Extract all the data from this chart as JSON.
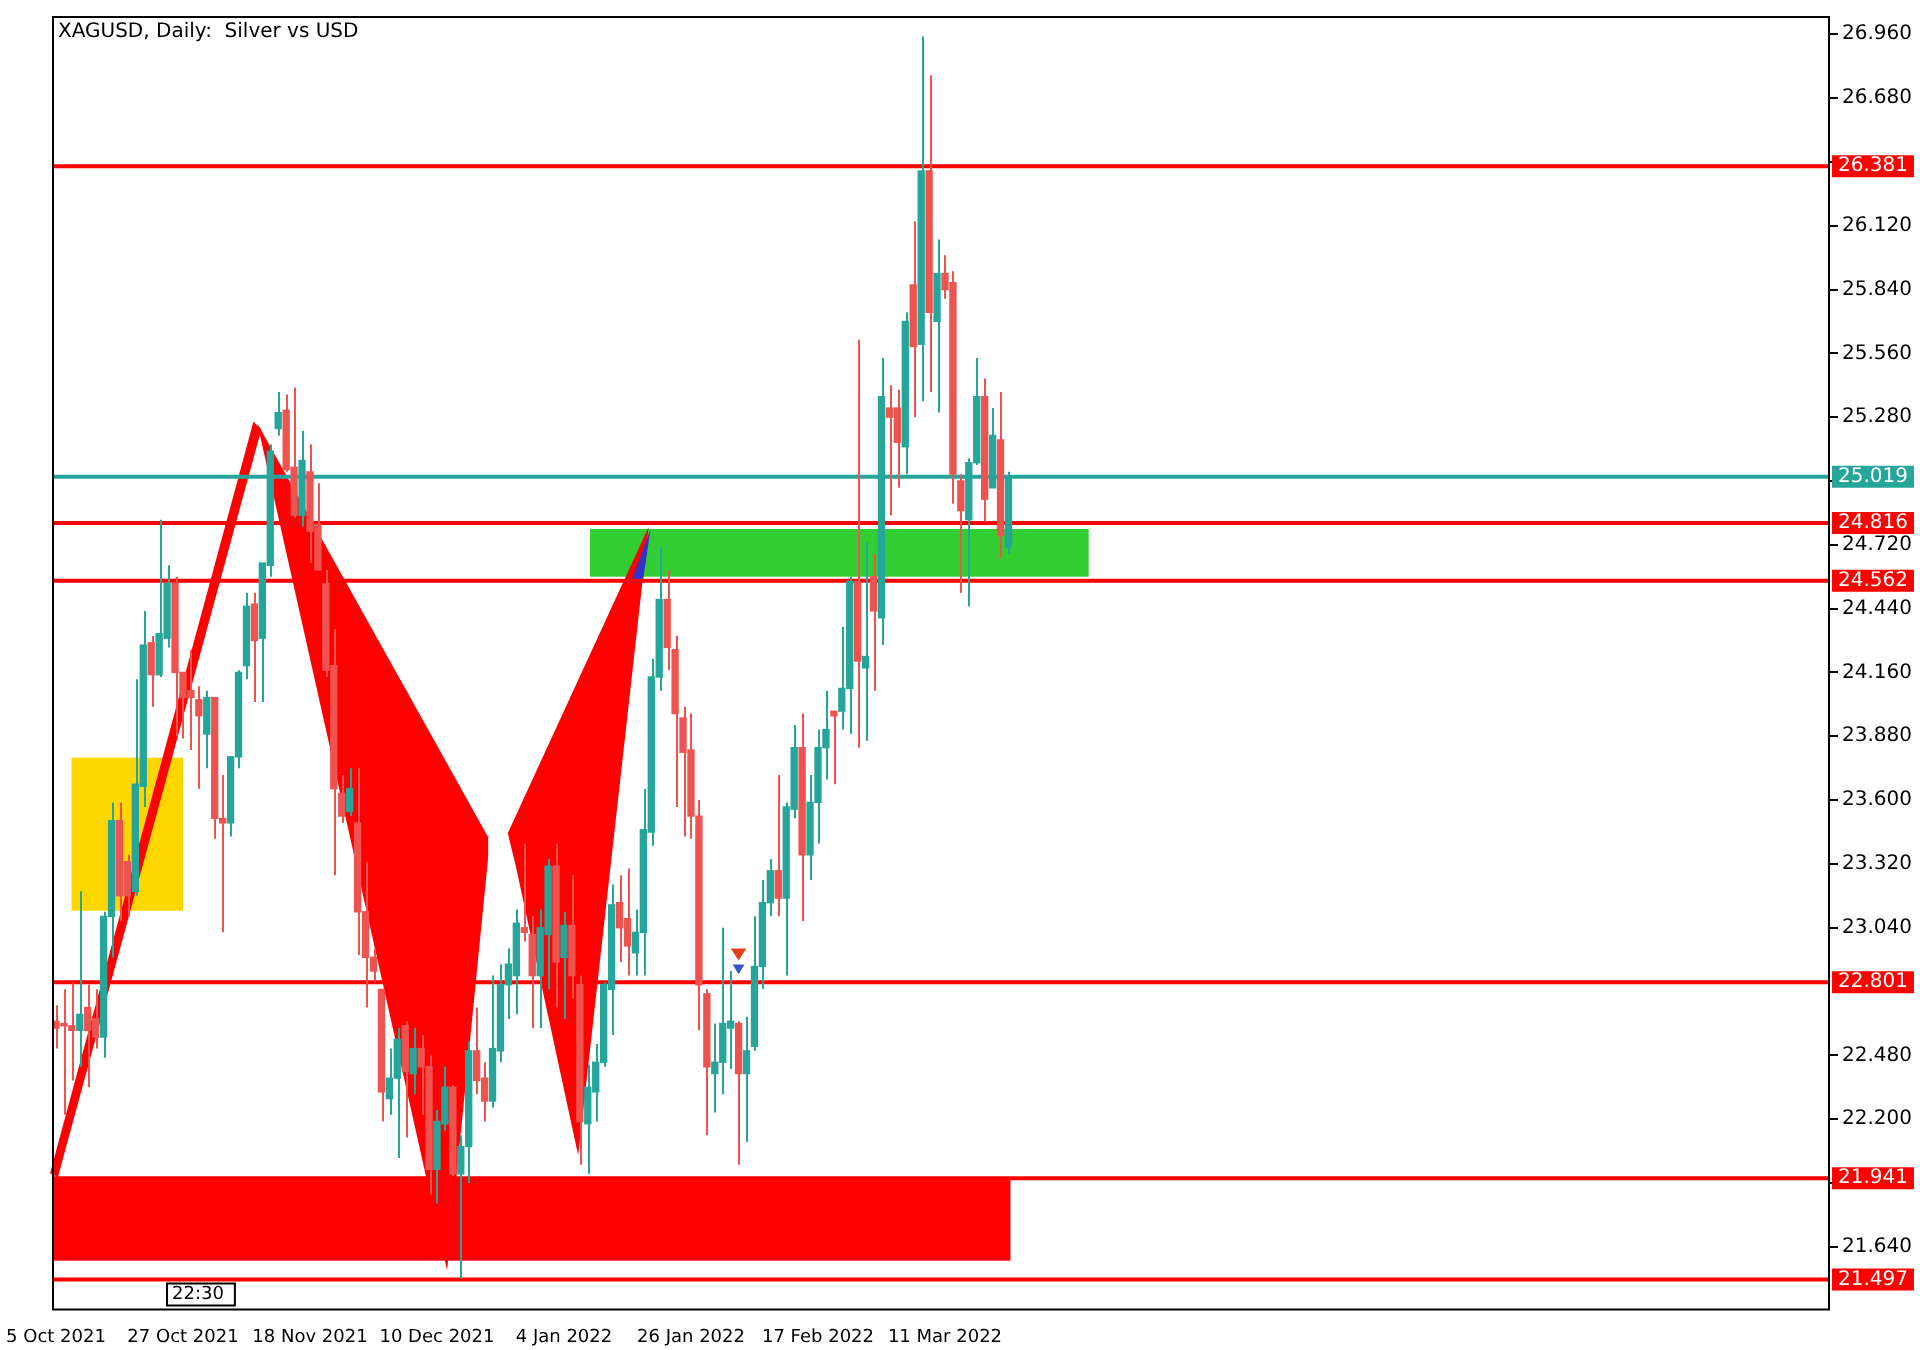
{
  "chart_data": {
    "type": "candlestick",
    "title": "XAGUSD, Daily:  Silver vs USD",
    "annotations": [
      "22:30"
    ],
    "colors": [
      "#ef5350",
      "#ef5350",
      "#ef5350",
      "#26a69a",
      "#ef5350",
      "#ef5350",
      "#26a69a",
      "#26a69a",
      "#ef5350",
      "#ef5350",
      "#26a69a",
      "#26a69a",
      "#ef5350",
      "#26a69a",
      "#26a69a",
      "#ef5350",
      "#ef5350",
      "#ef5350",
      "#ef5350",
      "#26a69a",
      "#ef5350",
      "#ef5350",
      "#26a69a",
      "#26a69a",
      "#26a69a",
      "#ef5350",
      "#26a69a",
      "#26a69a",
      "#26a69a",
      "#ef5350",
      "#ef5350",
      "#26a69a",
      "#ef5350",
      "#ef5350",
      "#ef5350",
      "#ef5350",
      "#ef5350",
      "#26a69a",
      "#ef5350",
      "#ef5350",
      "#ef5350",
      "#ef5350",
      "#26a69a",
      "#26a69a",
      "#ef5350",
      "#26a69a",
      "#ef5350",
      "#ef5350",
      "#26a69a",
      "#26a69a",
      "#ef5350",
      "#26a69a",
      "#26a69a",
      "#ef5350",
      "#ef5350",
      "#26a69a",
      "#26a69a",
      "#26a69a",
      "#26a69a",
      "#ef5350",
      "#ef5350",
      "#26a69a",
      "#26a69a",
      "#ef5350",
      "#26a69a",
      "#ef5350",
      "#ef5350",
      "#26a69a",
      "#26a69a",
      "#26a69a",
      "#26a69a",
      "#ef5350",
      "#ef5350",
      "#26a69a",
      "#26a69a",
      "#26a69a",
      "#26a69a",
      "#ef5350",
      "#ef5350",
      "#ef5350",
      "#ef5350",
      "#ef5350",
      "#ef5350",
      "#26a69a",
      "#26a69a",
      "#26a69a",
      "#ef5350",
      "#26a69a",
      "#26a69a",
      "#26a69a",
      "#26a69a",
      "#ef5350",
      "#26a69a",
      "#26a69a",
      "#ef5350",
      "#26a69a",
      "#26a69a",
      "#26a69a",
      "#ef5350",
      "#26a69a",
      "#26a69a",
      "#ef5350",
      "#26a69a",
      "#ef5350",
      "#26a69a",
      "#ef5350",
      "#ef5350",
      "#26a69a",
      "#ef5350",
      "#26a69a",
      "#ef5350",
      "#26a69a",
      "#ef5350",
      "#ef5350",
      "#ef5350",
      "#26a69a",
      "#26a69a",
      "#ef5350",
      "#26a69a",
      "#ef5350",
      "#26a69a",
      null,
      null,
      null,
      null,
      null,
      null,
      null,
      null,
      null,
      null,
      null,
      null,
      null,
      null,
      null,
      null,
      null,
      null,
      null,
      null,
      null,
      null,
      null,
      null,
      null,
      null,
      null,
      null,
      null,
      null,
      null,
      null,
      null,
      null,
      null,
      null,
      null,
      null,
      null,
      null,
      null,
      null,
      null,
      null,
      null,
      null,
      null,
      null,
      null,
      null,
      null,
      null,
      null,
      null,
      null,
      null,
      null,
      null,
      null,
      null,
      null,
      null,
      null,
      null,
      null,
      null,
      null,
      null,
      null,
      null,
      null,
      null,
      null,
      null,
      null,
      null,
      null,
      null,
      null,
      null,
      null,
      null,
      null,
      null,
      null,
      null,
      null,
      null,
      null,
      null,
      null,
      null,
      null,
      null,
      null,
      null,
      null,
      null,
      null,
      null,
      null,
      null,
      null
    ],
    "ylim": [
      21.37,
      27.04
    ],
    "yticks": [
      {
        "value": 26.96,
        "label": "26.960"
      },
      {
        "value": 26.68,
        "label": "26.680"
      },
      {
        "value": 26.4,
        "label": null
      },
      {
        "value": 26.12,
        "label": "26.120"
      },
      {
        "value": 25.84,
        "label": "25.840"
      },
      {
        "value": 25.56,
        "label": "25.560"
      },
      {
        "value": 25.28,
        "label": "25.280"
      },
      {
        "value": 25.0,
        "label": null
      },
      {
        "value": 24.72,
        "label": "24.720"
      },
      {
        "value": 24.44,
        "label": "24.440"
      },
      {
        "value": 24.16,
        "label": "24.160"
      },
      {
        "value": 23.88,
        "label": "23.880"
      },
      {
        "value": 23.6,
        "label": "23.600"
      },
      {
        "value": 23.32,
        "label": "23.320"
      },
      {
        "value": 23.04,
        "label": "23.040"
      },
      {
        "value": 22.48,
        "label": "22.480"
      },
      {
        "value": 22.2,
        "label": "22.200"
      },
      {
        "value": 21.92,
        "label": null
      },
      {
        "value": 21.64,
        "label": "21.640"
      }
    ],
    "ref_lines": [
      {
        "axis": "y",
        "value": 26.381,
        "label": "26.381",
        "color": "#ff0000"
      },
      {
        "axis": "y",
        "value": 25.019,
        "label": "25.019",
        "color": "#26a69a"
      },
      {
        "axis": "y",
        "value": 24.816,
        "label": "24.816",
        "color": "#ff0000"
      },
      {
        "axis": "y",
        "value": 24.562,
        "label": "24.562",
        "color": "#ff0000"
      },
      {
        "axis": "y",
        "value": 22.801,
        "label": "22.801",
        "color": "#ff0000"
      },
      {
        "axis": "y",
        "value": 21.941,
        "label": "21.941",
        "color": "#ff0000"
      },
      {
        "axis": "y",
        "value": 21.497,
        "label": "21.497",
        "color": "#ff0000"
      }
    ],
    "categories": [
      "5 Oct 2021",
      null,
      null,
      null,
      null,
      null,
      null,
      null,
      null,
      null,
      null,
      null,
      null,
      null,
      null,
      null,
      "27 Oct 2021",
      null,
      null,
      null,
      null,
      null,
      null,
      null,
      null,
      null,
      null,
      null,
      null,
      null,
      null,
      null,
      "18 Nov 2021",
      null,
      null,
      null,
      null,
      null,
      null,
      null,
      null,
      null,
      null,
      null,
      null,
      null,
      null,
      null,
      "10 Dec 2021",
      null,
      null,
      null,
      null,
      null,
      null,
      null,
      null,
      null,
      null,
      null,
      null,
      null,
      null,
      null,
      "4 Jan 2022",
      null,
      null,
      null,
      null,
      null,
      null,
      null,
      null,
      null,
      null,
      null,
      null,
      null,
      null,
      null,
      "26 Jan 2022",
      null,
      null,
      null,
      null,
      null,
      null,
      null,
      null,
      null,
      null,
      null,
      null,
      null,
      null,
      null,
      "17 Feb 2022",
      null,
      null,
      null,
      null,
      null,
      null,
      null,
      null,
      null,
      null,
      null,
      null,
      null,
      null,
      null,
      "11 Mar 2022",
      null,
      null,
      null,
      null,
      null,
      null,
      null,
      null,
      null,
      null,
      null,
      null,
      null,
      null,
      null,
      null,
      null,
      null,
      null,
      null,
      null,
      null,
      null,
      null,
      null,
      null,
      null,
      null,
      null,
      null,
      null,
      null,
      null,
      null,
      null,
      null,
      null,
      null,
      null,
      null,
      null,
      null,
      null,
      null,
      null,
      null,
      null,
      null,
      null,
      null,
      null,
      null,
      null,
      null,
      null,
      null,
      null,
      null,
      null,
      null,
      null,
      null,
      null,
      null,
      null,
      null,
      null,
      null,
      null,
      null,
      null,
      null,
      null,
      null,
      null,
      null,
      null,
      null,
      null,
      null,
      null,
      null,
      null,
      null,
      null,
      null,
      null,
      null,
      null,
      null,
      null,
      null,
      null,
      null,
      null,
      null,
      null,
      null,
      null,
      null,
      null,
      null,
      null,
      null,
      null,
      null,
      null,
      null,
      null,
      null,
      null
    ],
    "ohlc": [
      [
        22.63,
        22.7,
        22.51,
        22.6
      ],
      [
        22.62,
        22.77,
        22.22,
        22.61
      ],
      [
        22.61,
        22.8,
        22.37,
        22.59
      ],
      [
        22.59,
        23.2,
        22.43,
        22.66
      ],
      [
        22.69,
        22.79,
        22.34,
        22.59
      ],
      [
        22.64,
        22.77,
        22.51,
        22.56
      ],
      [
        22.56,
        23.11,
        22.47,
        23.09
      ],
      [
        23.09,
        23.59,
        22.91,
        23.51
      ],
      [
        23.51,
        23.59,
        23.07,
        23.18
      ],
      [
        23.33,
        23.36,
        23.09,
        23.18
      ],
      [
        23.2,
        24.13,
        23.18,
        23.67
      ],
      [
        23.66,
        24.43,
        23.57,
        24.28
      ],
      [
        24.29,
        24.32,
        24.01,
        24.15
      ],
      [
        24.15,
        24.83,
        24.14,
        24.33
      ],
      [
        24.31,
        24.63,
        24.27,
        24.55
      ],
      [
        24.55,
        24.58,
        23.88,
        24.16
      ],
      [
        24.16,
        24.16,
        23.87,
        24.05
      ],
      [
        24.08,
        24.26,
        23.82,
        24.05
      ],
      [
        24.04,
        24.1,
        23.65,
        23.97
      ],
      [
        23.89,
        24.08,
        23.74,
        24.05
      ],
      [
        24.05,
        24.05,
        23.43,
        23.52
      ],
      [
        23.52,
        23.71,
        23.02,
        23.5
      ],
      [
        23.5,
        23.79,
        23.44,
        23.79
      ],
      [
        23.79,
        24.17,
        23.74,
        24.16
      ],
      [
        24.19,
        24.51,
        24.13,
        24.45
      ],
      [
        24.46,
        24.51,
        24.03,
        24.3
      ],
      [
        24.31,
        24.64,
        24.03,
        24.64
      ],
      [
        24.63,
        25.16,
        24.58,
        25.13
      ],
      [
        25.23,
        25.39,
        25.2,
        25.3
      ],
      [
        25.31,
        25.38,
        25.04,
        25.05
      ],
      [
        25.06,
        25.41,
        24.84,
        24.85
      ],
      [
        24.85,
        25.22,
        24.8,
        25.09
      ],
      [
        25.04,
        25.16,
        24.64,
        24.78
      ],
      [
        24.81,
        24.99,
        24.61,
        24.61
      ],
      [
        24.55,
        24.61,
        24.14,
        24.17
      ],
      [
        24.19,
        24.35,
        23.27,
        23.65
      ],
      [
        23.63,
        23.71,
        23.5,
        23.53
      ],
      [
        23.55,
        23.74,
        23.53,
        23.65
      ],
      [
        23.5,
        23.74,
        22.92,
        23.11
      ],
      [
        23.11,
        23.33,
        22.69,
        22.91
      ],
      [
        22.91,
        22.95,
        22.8,
        22.85
      ],
      [
        22.77,
        22.77,
        22.19,
        22.32
      ],
      [
        22.29,
        22.51,
        22.22,
        22.38
      ],
      [
        22.38,
        22.6,
        22.03,
        22.55
      ],
      [
        22.61,
        22.63,
        22.12,
        22.41
      ],
      [
        22.4,
        22.6,
        22.31,
        22.51
      ],
      [
        22.51,
        22.57,
        22.22,
        22.43
      ],
      [
        22.43,
        22.48,
        21.87,
        21.98
      ],
      [
        21.98,
        22.24,
        21.83,
        22.19
      ],
      [
        22.18,
        22.43,
        22.15,
        22.34
      ],
      [
        22.34,
        22.35,
        21.95,
        21.96
      ],
      [
        21.96,
        22.13,
        21.5,
        22.08
      ],
      [
        22.08,
        22.54,
        21.92,
        22.5
      ],
      [
        22.5,
        22.69,
        22.31,
        22.37
      ],
      [
        22.38,
        22.45,
        22.19,
        22.28
      ],
      [
        22.28,
        22.83,
        22.25,
        22.51
      ],
      [
        22.5,
        22.88,
        22.45,
        22.79
      ],
      [
        22.79,
        22.95,
        22.64,
        22.88
      ],
      [
        22.83,
        23.12,
        22.66,
        23.06
      ],
      [
        23.04,
        23.41,
        22.98,
        23.02
      ],
      [
        23.01,
        23.09,
        22.6,
        22.83
      ],
      [
        22.83,
        23.12,
        22.6,
        23.04
      ],
      [
        23.01,
        23.34,
        22.77,
        23.31
      ],
      [
        23.31,
        23.41,
        22.69,
        22.89
      ],
      [
        22.91,
        23.11,
        22.64,
        23.05
      ],
      [
        23.05,
        23.27,
        22.73,
        22.83
      ],
      [
        22.79,
        22.83,
        22.0,
        22.19
      ],
      [
        22.18,
        22.44,
        21.96,
        22.34
      ],
      [
        22.32,
        22.53,
        22.19,
        22.45
      ],
      [
        22.45,
        22.8,
        22.43,
        22.79
      ],
      [
        22.77,
        23.23,
        22.57,
        23.14
      ],
      [
        23.15,
        23.27,
        22.89,
        23.04
      ],
      [
        23.08,
        23.3,
        22.83,
        22.96
      ],
      [
        22.93,
        23.12,
        22.83,
        23.02
      ],
      [
        23.02,
        23.65,
        22.83,
        23.47
      ],
      [
        23.46,
        24.22,
        23.4,
        24.14
      ],
      [
        24.14,
        24.71,
        24.08,
        24.48
      ],
      [
        24.48,
        24.61,
        24.17,
        24.27
      ],
      [
        24.26,
        24.32,
        23.57,
        23.98
      ],
      [
        23.96,
        24.01,
        23.44,
        23.81
      ],
      [
        23.82,
        23.98,
        23.43,
        23.53
      ],
      [
        23.53,
        23.6,
        22.59,
        22.79
      ],
      [
        22.75,
        22.77,
        22.13,
        22.43
      ],
      [
        22.4,
        22.62,
        22.23,
        22.45
      ],
      [
        22.45,
        23.04,
        22.31,
        22.62
      ],
      [
        22.6,
        22.85,
        22.42,
        22.63
      ],
      [
        22.62,
        22.63,
        22.0,
        22.4
      ],
      [
        22.4,
        22.65,
        22.1,
        22.5
      ],
      [
        22.52,
        23.09,
        22.5,
        22.87
      ],
      [
        22.87,
        23.25,
        22.77,
        23.15
      ],
      [
        23.15,
        23.34,
        23.09,
        23.29
      ],
      [
        23.29,
        23.71,
        23.09,
        23.17
      ],
      [
        23.17,
        23.59,
        22.83,
        23.57
      ],
      [
        23.56,
        23.93,
        23.52,
        23.83
      ],
      [
        23.83,
        23.98,
        23.07,
        23.36
      ],
      [
        23.36,
        23.71,
        23.25,
        23.59
      ],
      [
        23.59,
        23.91,
        23.41,
        23.83
      ],
      [
        23.83,
        24.08,
        23.69,
        23.91
      ],
      [
        23.99,
        23.99,
        23.67,
        23.97
      ],
      [
        23.99,
        24.36,
        23.91,
        24.09
      ],
      [
        24.09,
        24.58,
        23.89,
        24.56
      ],
      [
        24.56,
        25.62,
        23.83,
        24.21
      ],
      [
        24.18,
        24.73,
        23.86,
        24.23
      ],
      [
        24.58,
        24.68,
        24.08,
        24.43
      ],
      [
        24.4,
        25.54,
        24.28,
        25.37
      ],
      [
        25.32,
        25.42,
        24.85,
        25.28
      ],
      [
        25.32,
        25.4,
        24.97,
        25.17
      ],
      [
        25.15,
        25.74,
        25.03,
        25.7
      ],
      [
        25.86,
        26.14,
        25.28,
        25.59
      ],
      [
        25.6,
        26.95,
        25.35,
        26.36
      ],
      [
        26.36,
        26.78,
        25.39,
        25.74
      ],
      [
        25.7,
        26.06,
        25.3,
        25.91
      ],
      [
        25.91,
        25.99,
        25.8,
        25.84
      ],
      [
        25.87,
        25.92,
        24.9,
        25.03
      ],
      [
        25.0,
        25.03,
        24.51,
        24.87
      ],
      [
        24.83,
        25.1,
        24.45,
        25.08
      ],
      [
        25.08,
        25.54,
        25.07,
        25.37
      ],
      [
        25.37,
        25.45,
        24.82,
        24.92
      ],
      [
        24.97,
        25.32,
        24.97,
        25.2
      ],
      [
        25.18,
        25.39,
        24.66,
        24.76
      ],
      [
        24.71,
        25.04,
        24.68,
        25.02
      ],
      null,
      null,
      null,
      null,
      null,
      null,
      null,
      null,
      null,
      null,
      null,
      null,
      null,
      null,
      null,
      null,
      null,
      null,
      null,
      null,
      null,
      null,
      null,
      null,
      null,
      null,
      null,
      null,
      null,
      null,
      null,
      null,
      null,
      null,
      null,
      null,
      null,
      null,
      null,
      null,
      null,
      null,
      null,
      null,
      null,
      null,
      null,
      null,
      null,
      null,
      null,
      null,
      null,
      null,
      null,
      null,
      null,
      null,
      null,
      null,
      null,
      null,
      null,
      null,
      null,
      null,
      null,
      null,
      null,
      null,
      null,
      null,
      null,
      null,
      null,
      null,
      null,
      null,
      null,
      null,
      null,
      null,
      null,
      null,
      null,
      null,
      null,
      null,
      null,
      null,
      null,
      null,
      null,
      null,
      null,
      null,
      null,
      null,
      null,
      null,
      null,
      null,
      null
    ]
  }
}
